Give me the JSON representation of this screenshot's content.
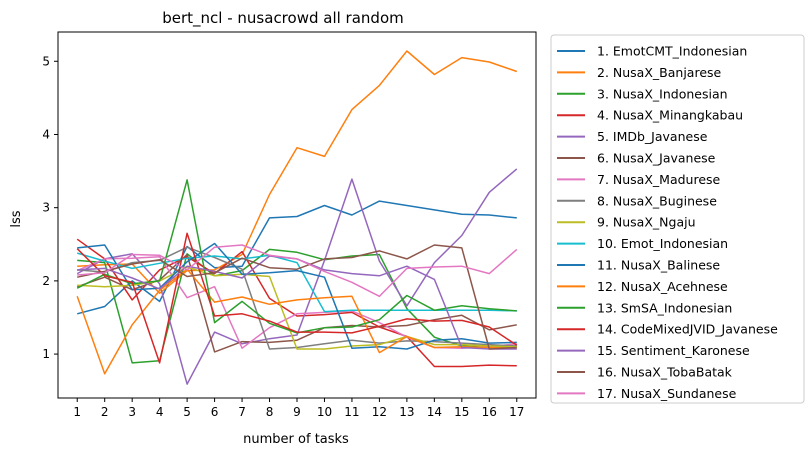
{
  "chart_data": {
    "type": "line",
    "title": "bert_ncl - nusacrowd all random",
    "xlabel": "number of tasks",
    "ylabel": "lss",
    "x": [
      1,
      2,
      3,
      4,
      5,
      6,
      7,
      8,
      9,
      10,
      11,
      12,
      13,
      14,
      15,
      16,
      17
    ],
    "xlim": [
      0.3,
      17.7
    ],
    "ylim": [
      0.4,
      5.4
    ],
    "yticks": [
      1,
      2,
      3,
      4,
      5
    ],
    "grid": false,
    "legend_position": "outside-right",
    "series": [
      {
        "name": "1. EmotCMT_Indonesian",
        "color": "#1f77b4",
        "values": [
          1.55,
          1.65,
          2.0,
          1.72,
          2.47,
          2.18,
          2.2,
          2.86,
          2.88,
          3.03,
          2.9,
          3.09,
          3.03,
          2.97,
          2.91,
          2.9,
          2.86
        ]
      },
      {
        "name": "2. NusaX_Banjarese",
        "color": "#ff7f0e",
        "values": [
          2.2,
          2.22,
          2.23,
          1.83,
          2.14,
          2.15,
          2.36,
          3.18,
          3.82,
          3.7,
          4.34,
          4.67,
          5.14,
          4.82,
          5.05,
          4.99,
          4.86
        ]
      },
      {
        "name": "3. NusaX_Indonesian",
        "color": "#2ca02c",
        "values": [
          2.28,
          2.25,
          0.88,
          0.91,
          2.37,
          2.07,
          2.14,
          2.43,
          2.39,
          2.29,
          2.34,
          2.36,
          1.62,
          1.23,
          1.11,
          1.09,
          1.11
        ]
      },
      {
        "name": "4. NusaX_Minangkabau",
        "color": "#d62728",
        "values": [
          2.57,
          2.3,
          1.74,
          2.15,
          2.33,
          2.1,
          2.4,
          1.76,
          1.52,
          1.54,
          1.57,
          1.37,
          1.24,
          0.83,
          0.83,
          0.85,
          0.84
        ]
      },
      {
        "name": "5. IMDb_Javanese",
        "color": "#9467bd",
        "values": [
          2.1,
          2.3,
          2.37,
          1.96,
          0.59,
          1.3,
          1.14,
          1.21,
          1.26,
          2.28,
          3.39,
          2.27,
          1.66,
          2.25,
          2.62,
          3.21,
          3.53
        ]
      },
      {
        "name": "6. NusaX_Javanese",
        "color": "#8c564b",
        "values": [
          1.92,
          2.05,
          1.88,
          2.01,
          2.36,
          1.03,
          1.17,
          1.16,
          1.19,
          1.36,
          1.39,
          1.37,
          1.39,
          1.47,
          1.53,
          1.33,
          1.4
        ]
      },
      {
        "name": "7. NusaX_Madurese",
        "color": "#e377c2",
        "values": [
          2.14,
          2.3,
          2.31,
          2.33,
          1.77,
          1.92,
          1.08,
          1.36,
          1.55,
          1.57,
          1.59,
          1.43,
          1.23,
          1.09,
          1.08,
          1.1,
          1.14
        ]
      },
      {
        "name": "8. NusaX_Buginese",
        "color": "#7f7f7f",
        "values": [
          2.15,
          2.12,
          2.25,
          2.28,
          2.46,
          2.32,
          2.16,
          1.07,
          1.09,
          1.14,
          1.19,
          1.15,
          1.18,
          1.17,
          1.15,
          1.13,
          1.11
        ]
      },
      {
        "name": "9. NusaX_Ngaju",
        "color": "#bcbd22",
        "values": [
          1.94,
          1.92,
          1.94,
          2.0,
          2.19,
          2.07,
          2.09,
          2.06,
          1.07,
          1.07,
          1.11,
          1.13,
          1.24,
          1.13,
          1.13,
          1.11,
          1.1
        ]
      },
      {
        "name": "10. Emot_Indonesian",
        "color": "#17becf",
        "values": [
          2.38,
          2.27,
          2.17,
          2.24,
          2.31,
          2.34,
          2.3,
          2.35,
          2.25,
          1.58,
          1.6,
          1.6,
          1.6,
          1.6,
          1.6,
          1.6,
          1.59
        ]
      },
      {
        "name": "11. NusaX_Balinese",
        "color": "#1f77b4",
        "values": [
          2.45,
          2.49,
          1.88,
          1.9,
          2.26,
          2.51,
          2.09,
          2.11,
          2.14,
          2.05,
          1.08,
          1.1,
          1.07,
          1.19,
          1.21,
          1.15,
          1.16
        ]
      },
      {
        "name": "12. NusaX_Acehnese",
        "color": "#ff7f0e",
        "values": [
          1.79,
          0.73,
          1.4,
          1.87,
          2.16,
          1.71,
          1.78,
          1.68,
          1.74,
          1.77,
          1.79,
          1.02,
          1.24,
          1.09,
          1.1,
          1.09,
          1.08
        ]
      },
      {
        "name": "13. SmSA_Indonesian",
        "color": "#2ca02c",
        "values": [
          1.9,
          2.09,
          1.96,
          2.0,
          3.38,
          1.43,
          1.72,
          1.42,
          1.29,
          1.36,
          1.37,
          1.47,
          1.8,
          1.6,
          1.66,
          1.62,
          1.59
        ]
      },
      {
        "name": "14. CodeMixedJVID_Javanese",
        "color": "#d62728",
        "values": [
          2.44,
          2.07,
          1.98,
          0.88,
          2.65,
          1.52,
          1.55,
          1.45,
          1.3,
          1.3,
          1.29,
          1.38,
          1.48,
          1.45,
          1.46,
          1.37,
          1.12
        ]
      },
      {
        "name": "15. Sentiment_Karonese",
        "color": "#9467bd",
        "values": [
          2.15,
          2.17,
          2.04,
          1.89,
          2.2,
          2.13,
          2.04,
          2.34,
          2.3,
          2.15,
          2.1,
          2.07,
          2.2,
          2.02,
          1.09,
          1.07,
          1.07
        ]
      },
      {
        "name": "16. NusaX_TobaBatak",
        "color": "#8c564b",
        "values": [
          2.05,
          2.13,
          2.23,
          2.29,
          2.06,
          2.11,
          2.31,
          2.18,
          2.16,
          2.3,
          2.32,
          2.41,
          2.3,
          2.49,
          2.45,
          1.07,
          1.09
        ]
      },
      {
        "name": "17. NusaX_Sundanese",
        "color": "#e377c2",
        "values": [
          2.08,
          2.11,
          2.36,
          2.35,
          2.15,
          2.46,
          2.49,
          2.35,
          2.3,
          2.13,
          1.98,
          1.79,
          2.17,
          2.19,
          2.2,
          2.1,
          2.43
        ]
      }
    ]
  }
}
